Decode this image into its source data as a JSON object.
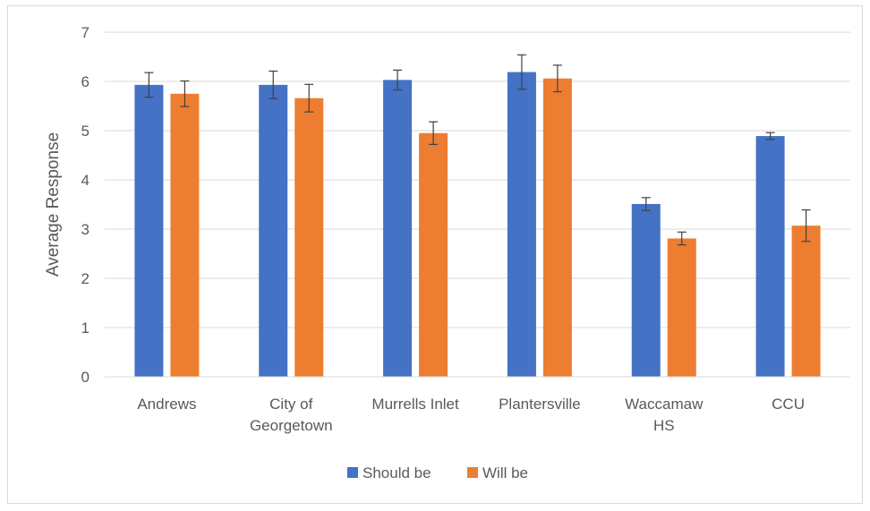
{
  "chart_data": {
    "type": "bar",
    "title": "",
    "xlabel": "",
    "ylabel": "Average Response",
    "ylim": [
      0,
      7
    ],
    "yticks": [
      0,
      1,
      2,
      3,
      4,
      5,
      6,
      7
    ],
    "grid": true,
    "legend_position": "bottom",
    "categories": [
      [
        "Andrews"
      ],
      [
        "City of",
        "Georgetown"
      ],
      [
        "Murrells Inlet"
      ],
      [
        "Plantersville"
      ],
      [
        "Waccamaw",
        "HS"
      ],
      [
        "CCU"
      ]
    ],
    "series": [
      {
        "name": "Should be",
        "color": "#4472c4",
        "values": [
          5.93,
          5.93,
          6.03,
          6.19,
          3.51,
          4.89
        ],
        "error": [
          0.25,
          0.28,
          0.2,
          0.35,
          0.13,
          0.07
        ]
      },
      {
        "name": "Will be",
        "color": "#ed7d31",
        "values": [
          5.75,
          5.66,
          4.95,
          6.06,
          2.81,
          3.07
        ],
        "error": [
          0.26,
          0.28,
          0.23,
          0.27,
          0.13,
          0.32
        ]
      }
    ]
  }
}
